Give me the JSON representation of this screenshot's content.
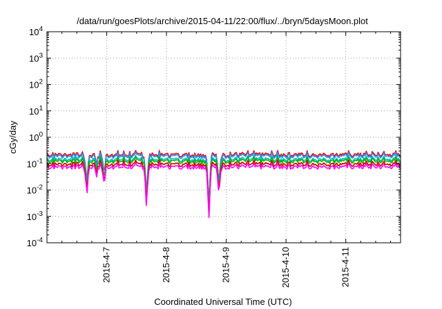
{
  "chart_data": {
    "type": "line",
    "title": "/data/run/goesPlots/archive/2015-04-11/22:00/flux/../bryn/5daysMoon.plot",
    "xlabel": "Coordinated Universal Time (UTC)",
    "ylabel": "cGy/day",
    "x_ticks": [
      "2015-4-7",
      "2015-4-8",
      "2015-4-9",
      "2015-4-10",
      "2015-4-11"
    ],
    "xlim": [
      "2015-04-06 00:00",
      "2015-04-11 22:00"
    ],
    "y_scale": "log",
    "ylim": [
      0.0001,
      10000
    ],
    "y_ticks": [
      {
        "base": "10",
        "exp": "-4"
      },
      {
        "base": "10",
        "exp": "-3"
      },
      {
        "base": "10",
        "exp": "-2"
      },
      {
        "base": "10",
        "exp": "-1"
      },
      {
        "base": "10",
        "exp": "0"
      },
      {
        "base": "10",
        "exp": "1"
      },
      {
        "base": "10",
        "exp": "2"
      },
      {
        "base": "10",
        "exp": "3"
      },
      {
        "base": "10",
        "exp": "4"
      }
    ],
    "grid": true,
    "series_colors": [
      "#ff0000",
      "#1e90ff",
      "#00bfbf",
      "#00b000",
      "#ffa500",
      "#d10000",
      "#ff00ff"
    ],
    "series_baselines": [
      0.22,
      0.185,
      0.145,
      0.12,
      0.095,
      0.09,
      0.075
    ],
    "dips": [
      {
        "x": "2015-04-06 16:00",
        "min": 0.0045
      },
      {
        "x": "2015-04-06 20:00",
        "min": 0.035
      },
      {
        "x": "2015-04-06 23:00",
        "min": 0.013
      },
      {
        "x": "2015-04-07 16:00",
        "min": 0.0016
      },
      {
        "x": "2015-04-08 17:00",
        "min": 0.0006
      },
      {
        "x": "2015-04-08 21:00",
        "min": 0.0045
      }
    ]
  }
}
